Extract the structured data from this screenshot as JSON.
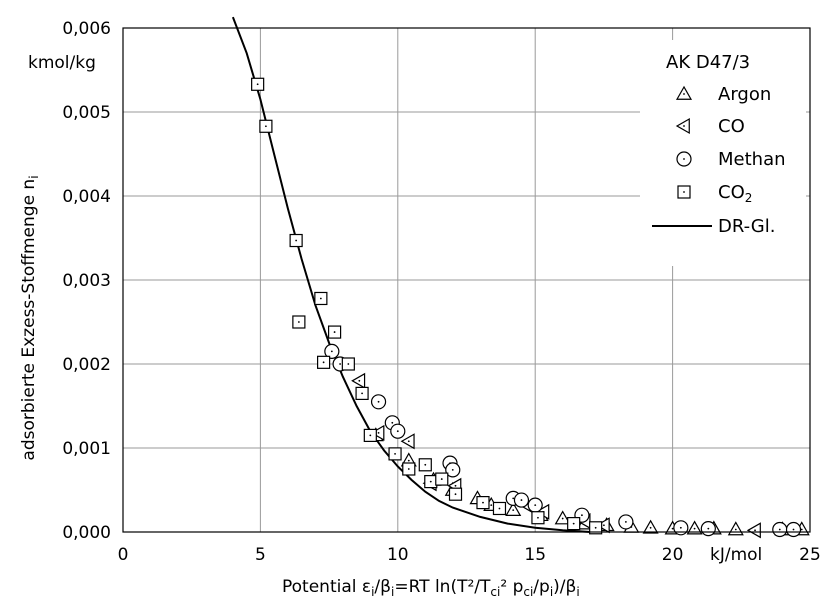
{
  "chart_data": {
    "type": "scatter",
    "title": "",
    "xlabel": "Potential",
    "ylabel": "adsorbierte Exzess-Stoffmenge n",
    "x_unit": "kJ/mol",
    "y_unit": "kmol/kg",
    "xlim": [
      0,
      25
    ],
    "ylim": [
      0,
      0.006
    ],
    "x_ticks": [
      "0",
      "5",
      "10",
      "15",
      "20",
      "25"
    ],
    "y_ticks": [
      "0,000",
      "0,001",
      "0,002",
      "0,003",
      "0,004",
      "0,005",
      "0,006"
    ],
    "grid": true,
    "legend_position": "top-right",
    "legend_title": "AK D47/3",
    "series": [
      {
        "name": "Argon",
        "marker": "triangle-up",
        "points": [
          [
            9.2,
            0.00115
          ],
          [
            10.4,
            0.00085
          ],
          [
            11.3,
            0.00062
          ],
          [
            12.0,
            0.0005
          ],
          [
            12.9,
            0.0004
          ],
          [
            13.4,
            0.00032
          ],
          [
            14.2,
            0.00026
          ],
          [
            15.2,
            0.0002
          ],
          [
            16.0,
            0.00016
          ],
          [
            16.8,
            0.0001
          ],
          [
            17.6,
            8e-05
          ],
          [
            18.5,
            6e-05
          ],
          [
            19.2,
            5e-05
          ],
          [
            20.0,
            4e-05
          ],
          [
            20.8,
            4e-05
          ],
          [
            21.5,
            4e-05
          ],
          [
            22.3,
            3e-05
          ],
          [
            24.0,
            3e-05
          ],
          [
            24.7,
            3e-05
          ]
        ]
      },
      {
        "name": "CO",
        "marker": "triangle-left",
        "points": [
          [
            8.6,
            0.0018
          ],
          [
            9.3,
            0.00118
          ],
          [
            10.4,
            0.00108
          ],
          [
            11.2,
            0.00058
          ],
          [
            12.1,
            0.00055
          ],
          [
            14.8,
            0.0003
          ],
          [
            15.3,
            0.00024
          ],
          [
            16.8,
            0.00013
          ],
          [
            17.5,
            8e-05
          ],
          [
            23.0,
            2e-05
          ]
        ]
      },
      {
        "name": "Methan",
        "marker": "circle",
        "points": [
          [
            7.6,
            0.00215
          ],
          [
            7.9,
            0.002
          ],
          [
            9.3,
            0.00155
          ],
          [
            9.8,
            0.0013
          ],
          [
            10.0,
            0.0012
          ],
          [
            11.9,
            0.00082
          ],
          [
            12.0,
            0.00074
          ],
          [
            14.2,
            0.0004
          ],
          [
            14.5,
            0.00038
          ],
          [
            15.0,
            0.00032
          ],
          [
            16.7,
            0.0002
          ],
          [
            18.3,
            0.00012
          ],
          [
            20.3,
            5e-05
          ],
          [
            21.3,
            4e-05
          ],
          [
            23.9,
            3e-05
          ],
          [
            24.4,
            3e-05
          ]
        ]
      },
      {
        "name": "CO",
        "subscript": "2",
        "marker": "square",
        "points": [
          [
            4.9,
            0.00533
          ],
          [
            5.2,
            0.00483
          ],
          [
            6.3,
            0.00347
          ],
          [
            6.4,
            0.0025
          ],
          [
            7.2,
            0.00278
          ],
          [
            7.3,
            0.00202
          ],
          [
            7.7,
            0.00238
          ],
          [
            8.2,
            0.002
          ],
          [
            8.7,
            0.00165
          ],
          [
            9.0,
            0.00115
          ],
          [
            9.9,
            0.00093
          ],
          [
            10.4,
            0.00075
          ],
          [
            11.0,
            0.0008
          ],
          [
            11.2,
            0.0006
          ],
          [
            11.6,
            0.00063
          ],
          [
            12.1,
            0.00045
          ],
          [
            13.1,
            0.00035
          ],
          [
            13.7,
            0.00028
          ],
          [
            15.1,
            0.00017
          ],
          [
            16.4,
            0.0001
          ],
          [
            17.2,
            5e-05
          ]
        ]
      },
      {
        "name": "DR-Gl.",
        "marker": "line",
        "points": [
          [
            4.0,
            0.00613
          ],
          [
            4.5,
            0.0057
          ],
          [
            5.0,
            0.00515
          ],
          [
            5.5,
            0.0045
          ],
          [
            6.0,
            0.00385
          ],
          [
            6.5,
            0.00325
          ],
          [
            7.0,
            0.0027
          ],
          [
            7.5,
            0.00225
          ],
          [
            8.0,
            0.00185
          ],
          [
            8.5,
            0.0015
          ],
          [
            9.0,
            0.0012
          ],
          [
            9.5,
            0.00097
          ],
          [
            10.0,
            0.00078
          ],
          [
            10.5,
            0.00062
          ],
          [
            11.0,
            0.00048
          ],
          [
            11.5,
            0.00037
          ],
          [
            12.0,
            0.00029
          ],
          [
            13.0,
            0.00018
          ],
          [
            14.0,
            0.0001
          ],
          [
            15.0,
            5e-05
          ],
          [
            16.0,
            2e-05
          ],
          [
            17.0,
            0.0
          ]
        ]
      }
    ]
  }
}
